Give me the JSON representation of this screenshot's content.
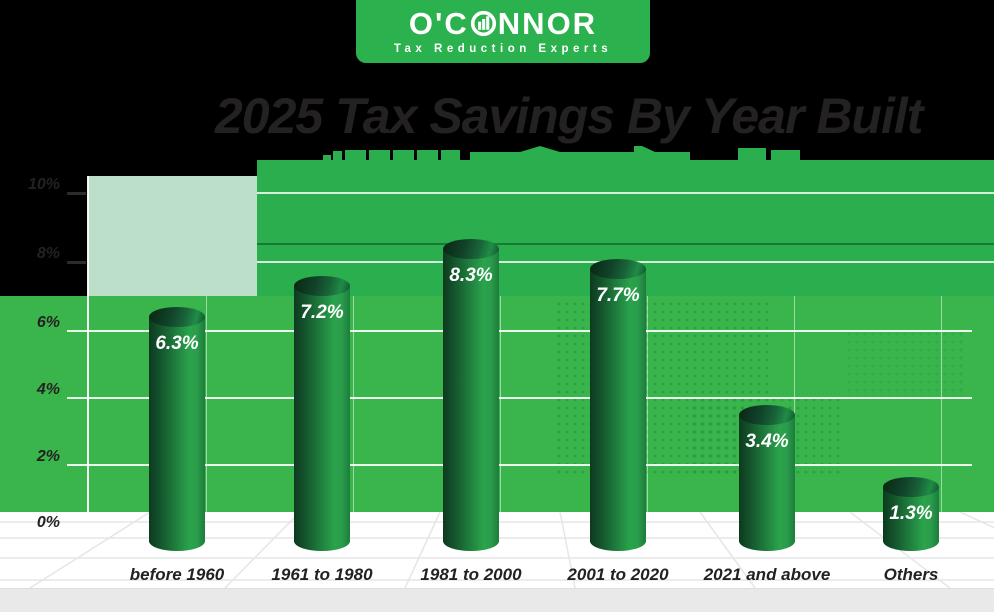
{
  "logo": {
    "prefix": "O'C",
    "suffix": "NNOR",
    "icon": "bar-chart-in-circle",
    "tagline": "Tax Reduction Experts",
    "brand_green": "#2BB14E"
  },
  "title": {
    "text": "2025 Tax Savings By Year Built"
  },
  "chart_data": {
    "type": "bar",
    "style": "3d-cylinder",
    "title": "2025 Tax Savings By Year Built",
    "categories": [
      "before 1960",
      "1961 to 1980",
      "1981 to 2000",
      "2001 to 2020",
      "2021 and above",
      "Others"
    ],
    "values": [
      6.3,
      7.2,
      8.3,
      7.7,
      3.4,
      1.3
    ],
    "value_labels": [
      "6.3%",
      "7.2%",
      "8.3%",
      "7.7%",
      "3.4%",
      "1.3%"
    ],
    "xlabel": "",
    "ylabel": "",
    "ylim": [
      0,
      10
    ],
    "y_ticks_top_to_bottom": [
      "10%",
      "8%",
      "6%",
      "4%",
      "2%",
      "0%"
    ],
    "grid": true,
    "legend": false,
    "bar_color": "#1e7a3c",
    "plot_bg_color": "#3AB54B",
    "pale_bg_color": "#BCDFC9",
    "gridline_color": "#ffffff",
    "label_ink_color": "#242122"
  }
}
